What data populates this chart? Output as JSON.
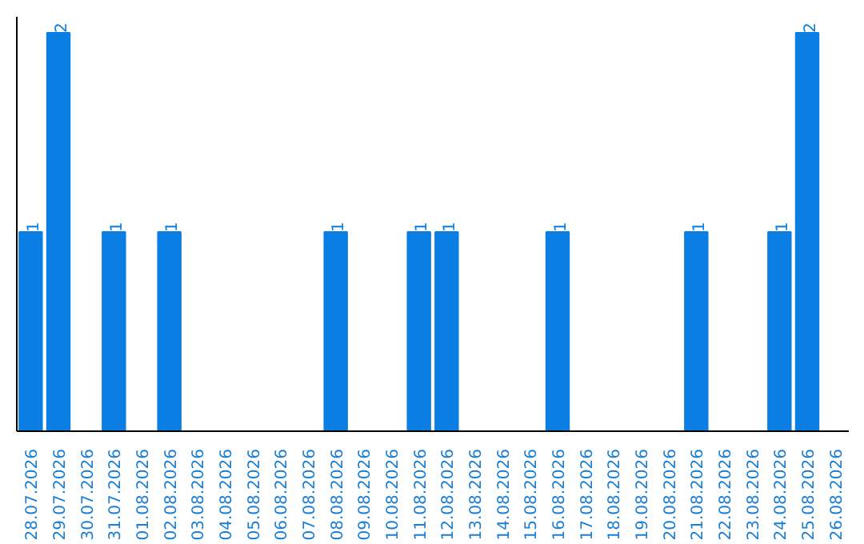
{
  "chart_data": {
    "type": "bar",
    "categories": [
      "28.07.2026",
      "29.07.2026",
      "30.07.2026",
      "31.07.2026",
      "01.08.2026",
      "02.08.2026",
      "03.08.2026",
      "04.08.2026",
      "05.08.2026",
      "06.08.2026",
      "07.08.2026",
      "08.08.2026",
      "09.08.2026",
      "10.08.2026",
      "11.08.2026",
      "12.08.2026",
      "13.08.2026",
      "14.08.2026",
      "15.08.2026",
      "16.08.2026",
      "17.08.2026",
      "18.08.2026",
      "19.08.2026",
      "20.08.2026",
      "21.08.2026",
      "22.08.2026",
      "23.08.2026",
      "24.08.2026",
      "25.08.2026",
      "26.08.2026"
    ],
    "values": [
      1,
      2,
      0,
      1,
      0,
      1,
      0,
      0,
      0,
      0,
      0,
      1,
      0,
      0,
      1,
      1,
      0,
      0,
      0,
      1,
      0,
      0,
      0,
      0,
      1,
      0,
      0,
      1,
      2,
      0
    ],
    "value_labels": [
      "1",
      "2",
      null,
      "1",
      null,
      "1",
      null,
      null,
      null,
      null,
      null,
      "1",
      null,
      null,
      "1",
      "1",
      null,
      null,
      null,
      "1",
      null,
      null,
      null,
      null,
      "1",
      null,
      null,
      "1",
      "2",
      null
    ],
    "color": "#0a7ee3",
    "grid": false,
    "tick_labels": "x"
  }
}
